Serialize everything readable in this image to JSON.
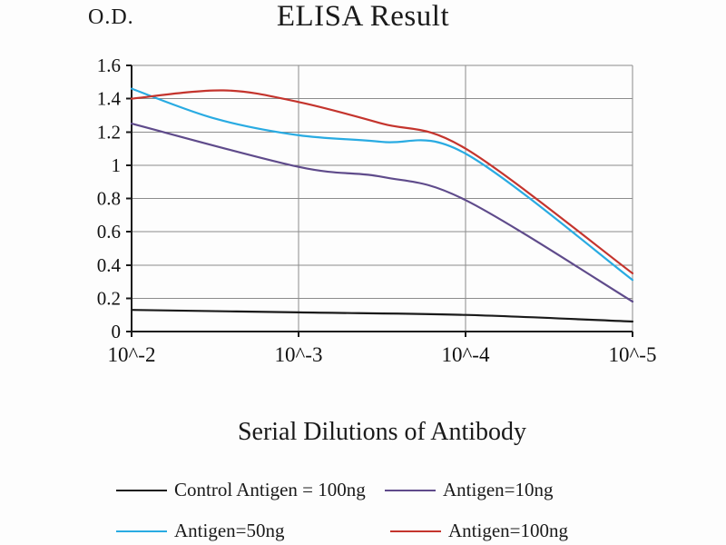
{
  "chart_data": {
    "type": "line",
    "title": "ELISA Result",
    "ylabel": "O.D.",
    "xlabel": "Serial Dilutions of Antibody",
    "categories": [
      "10^-2",
      "10^-3",
      "10^-4",
      "10^-5"
    ],
    "y_tick_values": [
      0,
      0.2,
      0.4,
      0.6,
      0.8,
      1,
      1.2,
      1.4,
      1.6
    ],
    "y_tick_labels": [
      "0",
      "0.2",
      "0.4",
      "0.6",
      "0.8",
      "1",
      "1.2",
      "1.4",
      "1.6"
    ],
    "ylim": [
      0,
      1.6
    ],
    "grid": true,
    "legend_position": "bottom",
    "axis_color": "#1a1a1a",
    "grid_color": "#8c8c8c",
    "series": [
      {
        "name": "Control Antigen = 100ng",
        "color": "#1a1a1a",
        "values": [
          0.13,
          0.12,
          0.1,
          0.06
        ],
        "points": [
          {
            "x": 0,
            "y": 0.13
          },
          {
            "x": 1,
            "y": 0.115
          },
          {
            "x": 2,
            "y": 0.1
          },
          {
            "x": 3,
            "y": 0.06
          }
        ]
      },
      {
        "name": "Antigen=10ng",
        "color": "#5f4b8b",
        "values": [
          1.25,
          0.99,
          0.79,
          0.18
        ],
        "points": [
          {
            "x": 0,
            "y": 1.25
          },
          {
            "x": 1,
            "y": 0.99
          },
          {
            "x": 1.5,
            "y": 0.93
          },
          {
            "x": 2,
            "y": 0.79
          },
          {
            "x": 3,
            "y": 0.18
          }
        ]
      },
      {
        "name": "Antigen=50ng",
        "color": "#29abe2",
        "values": [
          1.46,
          1.18,
          1.07,
          0.31
        ],
        "points": [
          {
            "x": 0,
            "y": 1.46
          },
          {
            "x": 0.5,
            "y": 1.28
          },
          {
            "x": 1,
            "y": 1.18
          },
          {
            "x": 1.5,
            "y": 1.14
          },
          {
            "x": 2,
            "y": 1.07
          },
          {
            "x": 3,
            "y": 0.31
          }
        ]
      },
      {
        "name": "Antigen=100ng",
        "color": "#c4342d",
        "values": [
          1.4,
          1.38,
          1.1,
          0.35
        ],
        "points": [
          {
            "x": 0,
            "y": 1.4
          },
          {
            "x": 0.55,
            "y": 1.45
          },
          {
            "x": 1,
            "y": 1.38
          },
          {
            "x": 1.5,
            "y": 1.25
          },
          {
            "x": 2,
            "y": 1.1
          },
          {
            "x": 3,
            "y": 0.35
          }
        ]
      }
    ]
  }
}
